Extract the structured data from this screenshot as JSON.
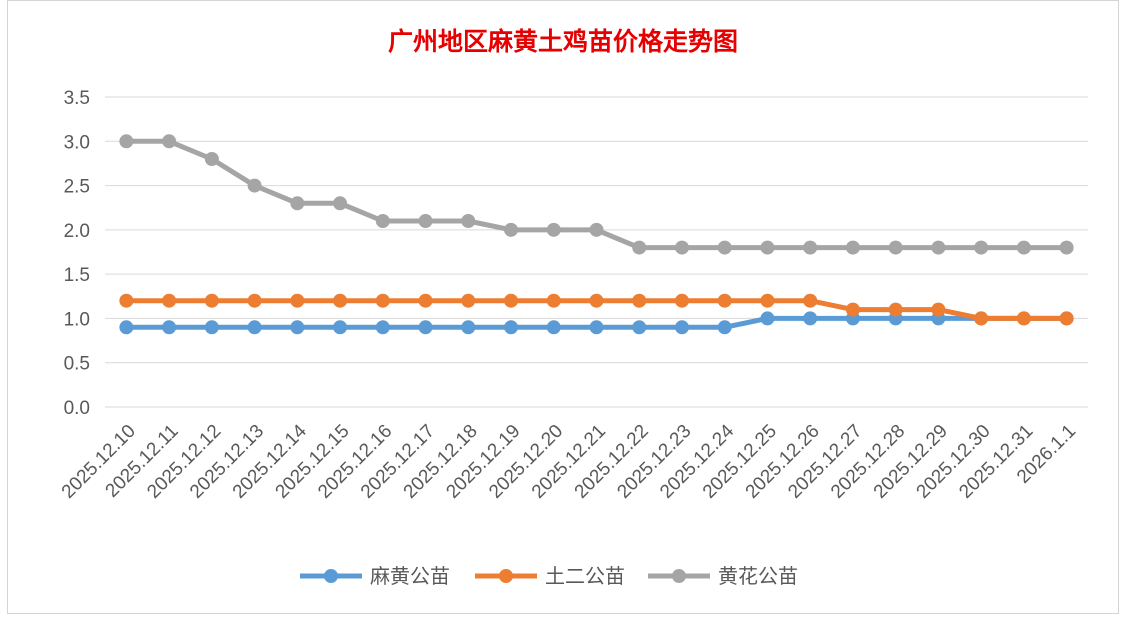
{
  "chart_data": {
    "type": "line",
    "title": "广州地区麻黄土鸡苗价格走势图",
    "xlabel": "",
    "ylabel": "",
    "ylim": [
      0,
      3.5
    ],
    "yticks": [
      "0.0",
      "0.5",
      "1.0",
      "1.5",
      "2.0",
      "2.5",
      "3.0",
      "3.5"
    ],
    "grid": true,
    "legend_position": "bottom",
    "categories": [
      "2025.12.10",
      "2025.12.11",
      "2025.12.12",
      "2025.12.13",
      "2025.12.14",
      "2025.12.15",
      "2025.12.16",
      "2025.12.17",
      "2025.12.18",
      "2025.12.19",
      "2025.12.20",
      "2025.12.21",
      "2025.12.22",
      "2025.12.23",
      "2025.12.24",
      "2025.12.25",
      "2025.12.26",
      "2025.12.27",
      "2025.12.28",
      "2025.12.29",
      "2025.12.30",
      "2025.12.31",
      "2026.1.1"
    ],
    "series": [
      {
        "name": "麻黄公苗",
        "color": "#5b9bd5",
        "values": [
          0.9,
          0.9,
          0.9,
          0.9,
          0.9,
          0.9,
          0.9,
          0.9,
          0.9,
          0.9,
          0.9,
          0.9,
          0.9,
          0.9,
          0.9,
          1.0,
          1.0,
          1.0,
          1.0,
          1.0,
          1.0,
          1.0,
          1.0
        ]
      },
      {
        "name": "土二公苗",
        "color": "#ed7d31",
        "values": [
          1.2,
          1.2,
          1.2,
          1.2,
          1.2,
          1.2,
          1.2,
          1.2,
          1.2,
          1.2,
          1.2,
          1.2,
          1.2,
          1.2,
          1.2,
          1.2,
          1.2,
          1.1,
          1.1,
          1.1,
          1.0,
          1.0,
          1.0
        ]
      },
      {
        "name": "黄花公苗",
        "color": "#a5a5a5",
        "values": [
          3.0,
          3.0,
          2.8,
          2.5,
          2.3,
          2.3,
          2.1,
          2.1,
          2.1,
          2.0,
          2.0,
          2.0,
          1.8,
          1.8,
          1.8,
          1.8,
          1.8,
          1.8,
          1.8,
          1.8,
          1.8,
          1.8,
          1.8
        ]
      }
    ]
  }
}
